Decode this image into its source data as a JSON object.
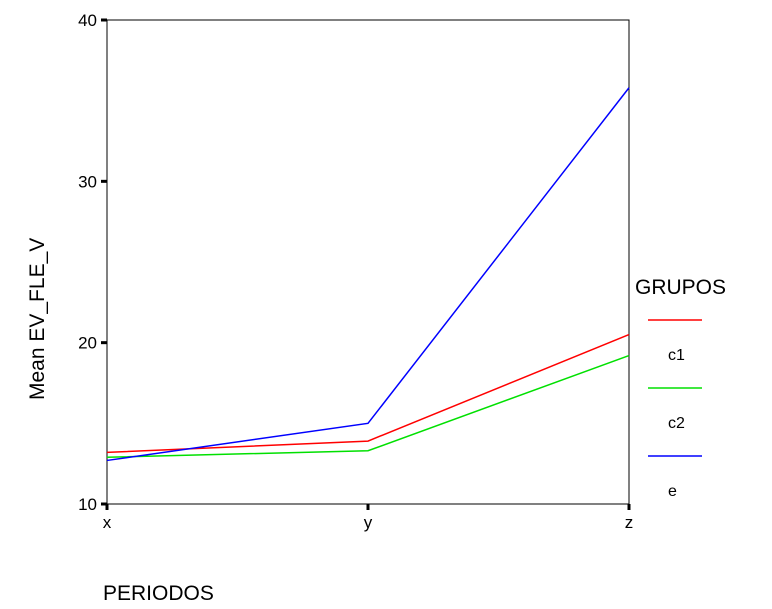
{
  "chart_data": {
    "type": "line",
    "title": "",
    "xlabel": "PERIODOS",
    "ylabel": "Mean EV_FLE_V",
    "categories": [
      "x",
      "y",
      "z"
    ],
    "ylim": [
      10,
      40
    ],
    "yticks": [
      10,
      20,
      30,
      40
    ],
    "grid": false,
    "legend": {
      "title": "GRUPOS",
      "placement": "right"
    },
    "series": [
      {
        "name": "c1",
        "color": "#ff0000",
        "values": [
          13.2,
          13.9,
          20.5
        ]
      },
      {
        "name": "c2",
        "color": "#00e000",
        "values": [
          12.9,
          13.3,
          19.2
        ]
      },
      {
        "name": "e",
        "color": "#0000ff",
        "values": [
          12.7,
          15.0,
          35.8
        ]
      }
    ]
  }
}
